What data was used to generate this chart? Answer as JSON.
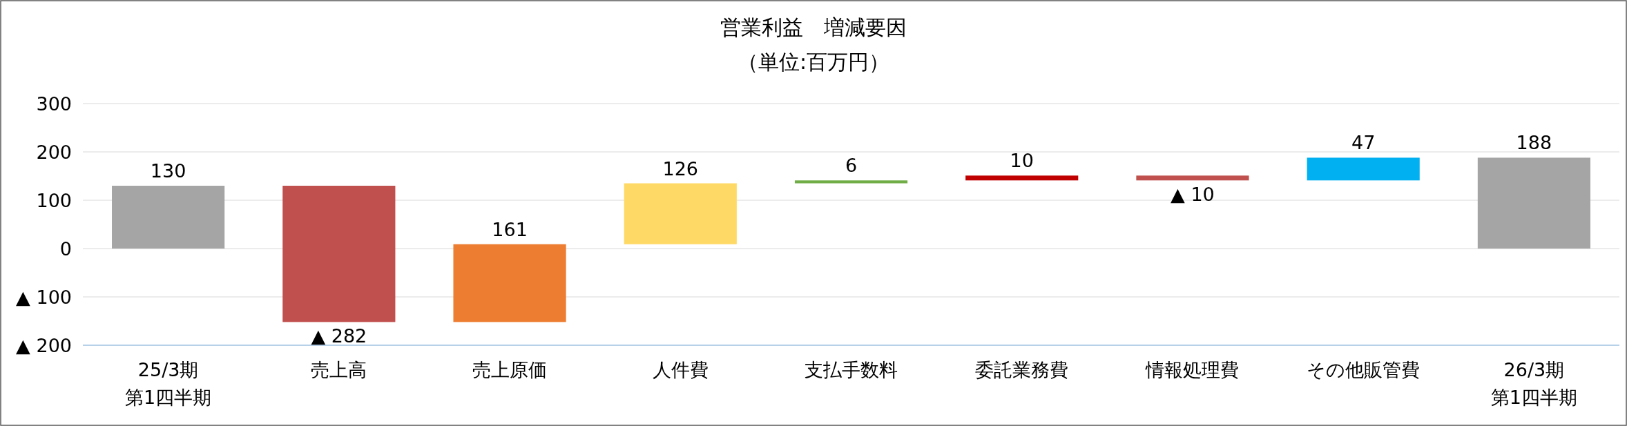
{
  "chart_data": {
    "type": "bar",
    "title": "営業利益　増減要因",
    "subtitle": "（単位:百万円）",
    "categories": [
      "25/3期第1四半期",
      "売上高",
      "売上原価",
      "人件費",
      "支払手数料",
      "委託業務費",
      "情報処理費",
      "その他販管費",
      "26/3期第1四半期"
    ],
    "values": [
      130,
      -282,
      161,
      126,
      6,
      10,
      -10,
      47,
      188
    ],
    "base": [
      0,
      130,
      -152,
      9,
      135,
      141,
      151,
      141,
      0
    ],
    "colors": [
      "#a5a5a5",
      "#c0504d",
      "#ed7d31",
      "#ffd966",
      "#70ad47",
      "#c00000",
      "#c0504d",
      "#00b0f0",
      "#a5a5a5"
    ],
    "value_labels": [
      "130",
      "▲ 282",
      "161",
      "126",
      "6",
      "10",
      "▲ 10",
      "47",
      "188"
    ],
    "ylim": [
      -200,
      300
    ],
    "yticks": [
      {
        "value": -200,
        "label": "▲ 200"
      },
      {
        "value": -100,
        "label": "▲ 100"
      },
      0,
      100,
      200,
      300
    ],
    "grid": "y"
  }
}
